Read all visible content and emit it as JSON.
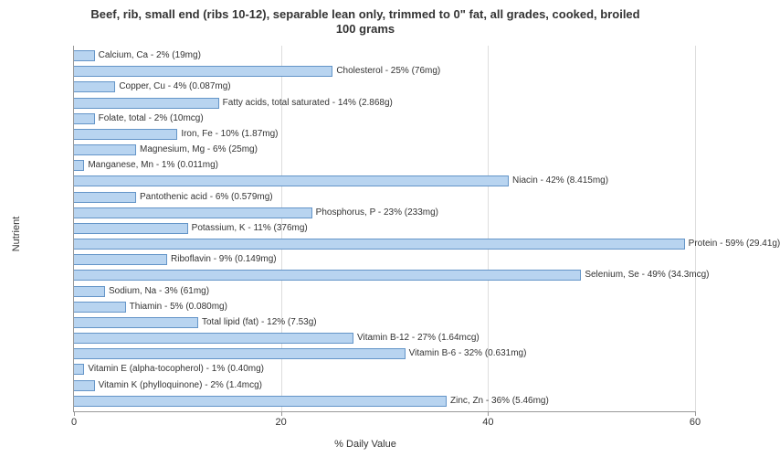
{
  "chart": {
    "type": "bar-horizontal",
    "title_line1": "Beef, rib, small end (ribs 10-12), separable lean only, trimmed to 0\" fat, all grades, cooked, broiled",
    "title_line2": "100 grams",
    "title_fontsize": 13,
    "label_fontsize": 10,
    "axis_fontsize": 11,
    "x_axis_label": "% Daily Value",
    "y_axis_label": "Nutrient",
    "xlim_min": 0,
    "xlim_max": 60,
    "x_ticks": [
      0,
      20,
      40,
      60
    ],
    "background_color": "#ffffff",
    "grid_color": "#dddddd",
    "axis_color": "#999999",
    "bar_fill": "#b8d4f0",
    "bar_border": "#6495c8",
    "text_color": "#333333",
    "nutrients": [
      {
        "label": "Calcium, Ca - 2% (19mg)",
        "value": 2
      },
      {
        "label": "Cholesterol - 25% (76mg)",
        "value": 25
      },
      {
        "label": "Copper, Cu - 4% (0.087mg)",
        "value": 4
      },
      {
        "label": "Fatty acids, total saturated - 14% (2.868g)",
        "value": 14
      },
      {
        "label": "Folate, total - 2% (10mcg)",
        "value": 2
      },
      {
        "label": "Iron, Fe - 10% (1.87mg)",
        "value": 10
      },
      {
        "label": "Magnesium, Mg - 6% (25mg)",
        "value": 6
      },
      {
        "label": "Manganese, Mn - 1% (0.011mg)",
        "value": 1
      },
      {
        "label": "Niacin - 42% (8.415mg)",
        "value": 42
      },
      {
        "label": "Pantothenic acid - 6% (0.579mg)",
        "value": 6
      },
      {
        "label": "Phosphorus, P - 23% (233mg)",
        "value": 23
      },
      {
        "label": "Potassium, K - 11% (376mg)",
        "value": 11
      },
      {
        "label": "Protein - 59% (29.41g)",
        "value": 59
      },
      {
        "label": "Riboflavin - 9% (0.149mg)",
        "value": 9
      },
      {
        "label": "Selenium, Se - 49% (34.3mcg)",
        "value": 49
      },
      {
        "label": "Sodium, Na - 3% (61mg)",
        "value": 3
      },
      {
        "label": "Thiamin - 5% (0.080mg)",
        "value": 5
      },
      {
        "label": "Total lipid (fat) - 12% (7.53g)",
        "value": 12
      },
      {
        "label": "Vitamin B-12 - 27% (1.64mcg)",
        "value": 27
      },
      {
        "label": "Vitamin B-6 - 32% (0.631mg)",
        "value": 32
      },
      {
        "label": "Vitamin E (alpha-tocopherol) - 1% (0.40mg)",
        "value": 1
      },
      {
        "label": "Vitamin K (phylloquinone) - 2% (1.4mcg)",
        "value": 2
      },
      {
        "label": "Zinc, Zn - 36% (5.46mg)",
        "value": 36
      }
    ]
  }
}
